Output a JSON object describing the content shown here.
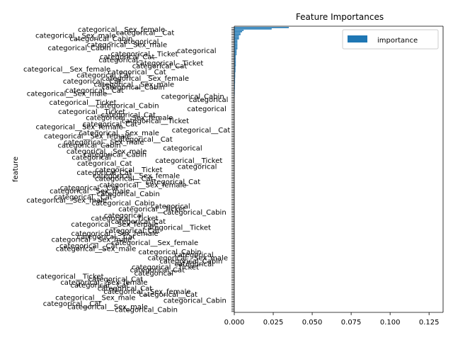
{
  "chart_data": {
    "type": "bar",
    "orientation": "horizontal",
    "title": "Feature Importances",
    "xlabel": "",
    "ylabel": "feature",
    "xlim": [
      0,
      0.134
    ],
    "x_ticks": [
      "0.000",
      "0.025",
      "0.050",
      "0.075",
      "0.100",
      "0.125"
    ],
    "legend": {
      "position": "top-right",
      "entries": [
        "importance"
      ]
    },
    "colors": {
      "bar": "#1f77b4"
    },
    "grid": false,
    "visible_category_labels": [
      "categorical__Sex_female",
      "categorical__Sex_male",
      "categorical",
      "categorical_Cat",
      "categorical__Cat",
      "categorical_Cabin",
      "categorical__Ticket"
    ],
    "series": [
      {
        "name": "importance",
        "values": [
          0.035,
          0.024,
          0.006,
          0.005,
          0.004,
          0.004,
          0.003,
          0.003,
          0.003,
          0.002,
          0.002,
          0.002,
          0.002,
          0.002,
          0.002,
          0.002,
          0.0015,
          0.0015,
          0.0015,
          0.0015,
          0.001,
          0.001,
          0.001,
          0.001,
          0.001,
          0.001,
          0.001,
          0.001,
          0.0008,
          0.0008,
          0.0008,
          0.0008,
          0.0006,
          0.0006,
          0.0006,
          0.0006,
          0.0005,
          0.0005,
          0.0005,
          0.0005,
          0.0004,
          0.0004,
          0.0004,
          0.0004,
          0.0003,
          0.0003,
          0.0003,
          0.0003,
          0.0002,
          0.0002
        ]
      }
    ]
  }
}
